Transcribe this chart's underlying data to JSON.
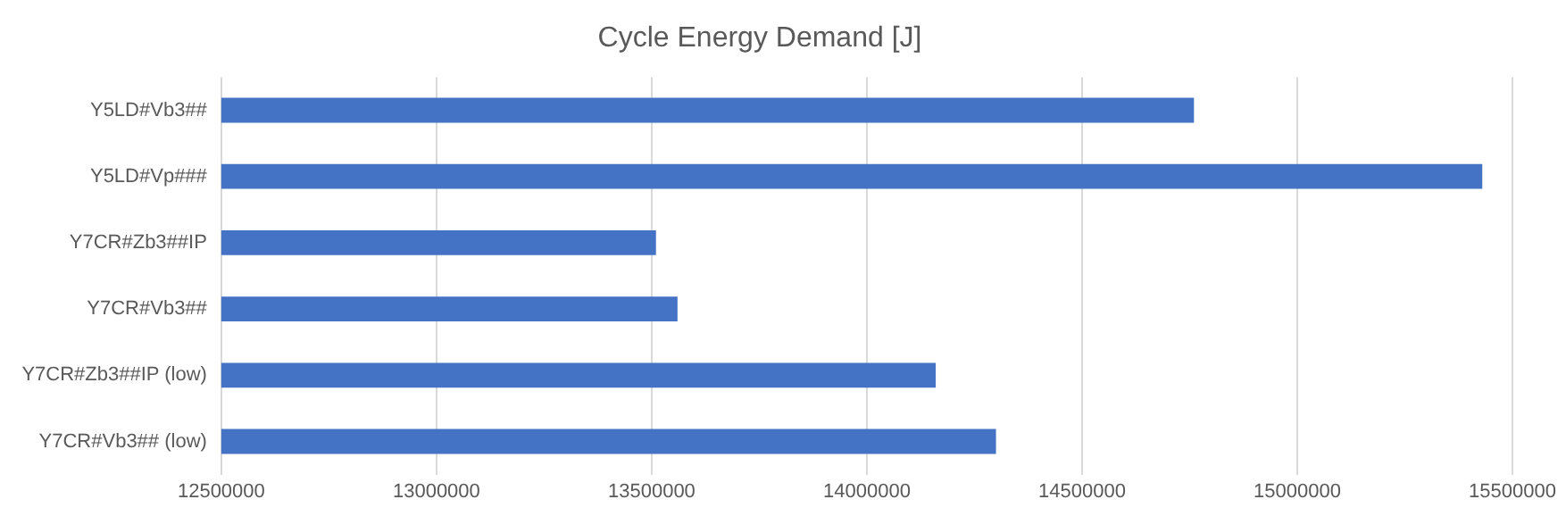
{
  "chart_data": {
    "type": "bar",
    "orientation": "horizontal",
    "title": "Cycle Energy Demand [J]",
    "categories": [
      "Y5LD#Vb3##",
      "Y5LD#Vp###",
      "Y7CR#Zb3##IP",
      "Y7CR#Vb3##",
      "Y7CR#Zb3##IP (low)",
      "Y7CR#Vb3## (low)"
    ],
    "values": [
      14760000,
      15430000,
      13510000,
      13560000,
      14160000,
      14300000
    ],
    "color": "#4472c4",
    "xlim": [
      12500000,
      15500000
    ],
    "xticks": [
      12500000,
      13000000,
      13500000,
      14000000,
      14500000,
      15000000,
      15500000
    ],
    "grid": "x",
    "legend": false
  }
}
